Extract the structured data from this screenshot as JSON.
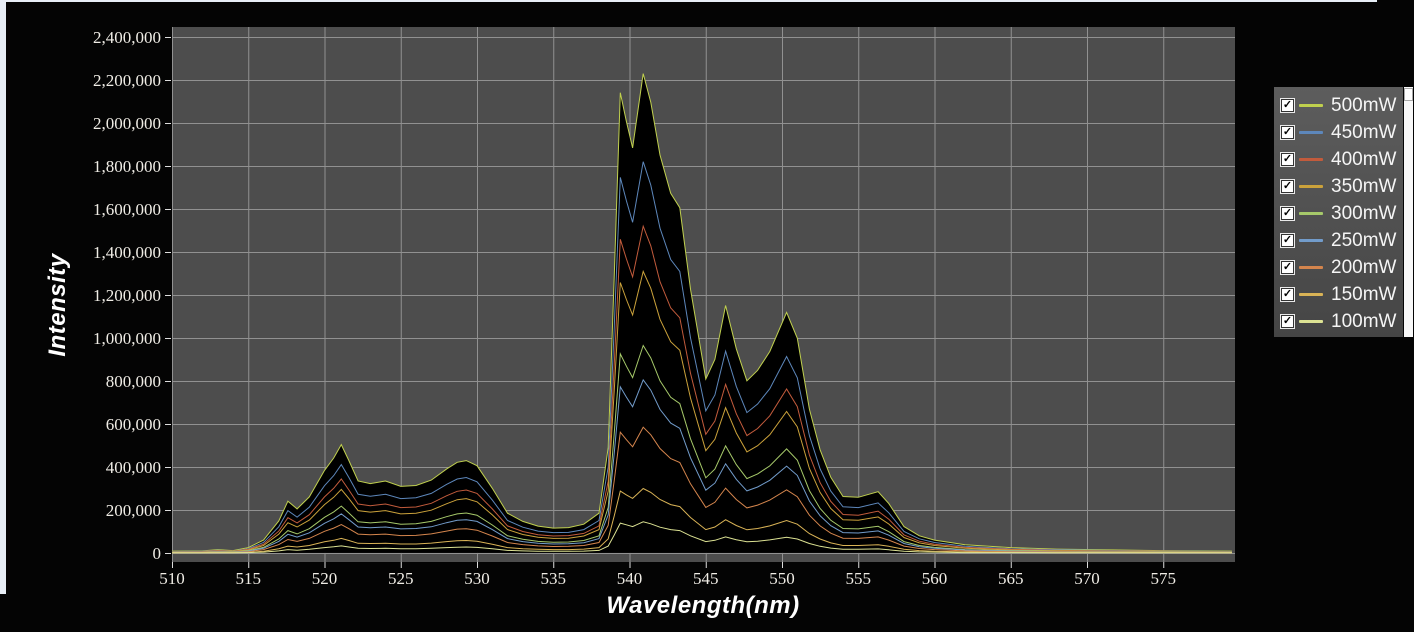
{
  "colors": {
    "background": "#040404",
    "plot_bg": "#4d4d4d",
    "grid": "#9d9d9d",
    "tick_mark": "#dddddd",
    "tick_text": "#f0ede6",
    "axis_title": "#ffffff",
    "frame_strip": "#e8eef6",
    "legend_bg_top": "#5d5d5d",
    "legend_bg_bottom": "#454545",
    "legend_text": "#f5f5f5",
    "scrollbar": "#f8f8f8"
  },
  "legend": {
    "check_glyph": "✓",
    "position": "right"
  },
  "chart_data": {
    "type": "line",
    "title": "",
    "xlabel": "Wavelength(nm)",
    "ylabel": "Intensity",
    "xlim": [
      510,
      579.7
    ],
    "ylim": [
      0,
      2400000
    ],
    "x_ticks": [
      510,
      515,
      520,
      525,
      530,
      535,
      540,
      545,
      550,
      555,
      560,
      565,
      570,
      575
    ],
    "y_tick_step": 200000,
    "grid": true,
    "legend_position": "right",
    "x": [
      510,
      512,
      513,
      514,
      515,
      516,
      517,
      517.6,
      518.2,
      519,
      520,
      520.6,
      521.1,
      521.6,
      522.2,
      523,
      524,
      525,
      526,
      527,
      528,
      528.7,
      529.3,
      530,
      531,
      532,
      533,
      534,
      535,
      536,
      537,
      538,
      538.6,
      539,
      539.4,
      539.8,
      540.2,
      540.9,
      541.4,
      542,
      542.7,
      543.3,
      544,
      545,
      545.6,
      546.3,
      547,
      547.7,
      548.4,
      549.2,
      550.3,
      551,
      551.8,
      552.5,
      553.2,
      554,
      555,
      556.3,
      557,
      558,
      559,
      560,
      562,
      565,
      568,
      571,
      575,
      579.5
    ],
    "series": [
      {
        "name": "500mW",
        "color": "#c0d04e",
        "checked": true,
        "values": [
          9000,
          10000,
          16000,
          11000,
          25000,
          60000,
          149000,
          241000,
          205000,
          261000,
          384000,
          442000,
          504000,
          430000,
          335000,
          323000,
          335000,
          310000,
          314000,
          339000,
          390000,
          422000,
          430000,
          406000,
          301000,
          185000,
          147000,
          125000,
          116000,
          118000,
          134000,
          185000,
          491000,
          1293000,
          2141000,
          2007000,
          1884000,
          2230000,
          2096000,
          1851000,
          1673000,
          1606000,
          1227000,
          809000,
          901000,
          1151000,
          950000,
          801000,
          850000,
          937000,
          1119000,
          999000,
          669000,
          480000,
          352000,
          263000,
          259000,
          285000,
          230000,
          123000,
          80000,
          60000,
          38000,
          25000,
          18000,
          15000,
          11000,
          9000
        ]
      },
      {
        "name": "450mW",
        "color": "#5d87bb",
        "checked": true,
        "values": [
          7000,
          8000,
          13000,
          9000,
          20000,
          49000,
          122000,
          197000,
          167000,
          213000,
          313000,
          360000,
          411000,
          351000,
          273000,
          264000,
          273000,
          253000,
          257000,
          277000,
          319000,
          344000,
          351000,
          331000,
          246000,
          151000,
          120000,
          102000,
          95000,
          96000,
          109000,
          151000,
          400000,
          1056000,
          1747000,
          1638000,
          1538000,
          1820000,
          1711000,
          1511000,
          1365000,
          1310000,
          1001000,
          661000,
          735000,
          939000,
          775000,
          653000,
          693000,
          764000,
          914000,
          815000,
          546000,
          391000,
          288000,
          215000,
          211000,
          233000,
          187000,
          100000,
          66000,
          49000,
          31000,
          20000,
          15000,
          12000,
          9000,
          7000
        ]
      },
      {
        "name": "400mW",
        "color": "#c25b3c",
        "checked": true,
        "values": [
          6000,
          7000,
          11000,
          8000,
          17000,
          41000,
          102000,
          164000,
          140000,
          178000,
          261000,
          301000,
          344000,
          293000,
          228000,
          220000,
          228000,
          211000,
          214000,
          231000,
          266000,
          287000,
          293000,
          277000,
          205000,
          126000,
          100000,
          85000,
          79000,
          81000,
          91000,
          126000,
          334000,
          882000,
          1459000,
          1368000,
          1284000,
          1520000,
          1429000,
          1262000,
          1140000,
          1094000,
          836000,
          552000,
          614000,
          784000,
          648000,
          546000,
          579000,
          638000,
          763000,
          681000,
          456000,
          327000,
          240000,
          179000,
          176000,
          195000,
          157000,
          84000,
          55000,
          41000,
          26000,
          17000,
          12000,
          10000,
          8000,
          6000
        ]
      },
      {
        "name": "350mW",
        "color": "#cba23b",
        "checked": true,
        "values": [
          5000,
          6000,
          9000,
          7000,
          14000,
          35000,
          88000,
          141000,
          121000,
          153000,
          225000,
          259000,
          296000,
          253000,
          197000,
          190000,
          197000,
          182000,
          185000,
          199000,
          229000,
          248000,
          253000,
          238000,
          177000,
          109000,
          86000,
          73000,
          68000,
          69000,
          79000,
          109000,
          288000,
          760000,
          1258000,
          1179000,
          1107000,
          1310000,
          1231000,
          1087000,
          983000,
          943000,
          721000,
          476000,
          529000,
          676000,
          558000,
          470000,
          499000,
          550000,
          658000,
          587000,
          393000,
          282000,
          207000,
          155000,
          152000,
          168000,
          135000,
          72000,
          47000,
          35000,
          22000,
          14000,
          10000,
          9000,
          7000,
          5000
        ]
      },
      {
        "name": "300mW",
        "color": "#a6c96a",
        "checked": true,
        "values": [
          4000,
          4000,
          7000,
          5000,
          11000,
          26000,
          65000,
          104000,
          89000,
          113000,
          166000,
          191000,
          218000,
          186000,
          145000,
          140000,
          145000,
          134000,
          136000,
          147000,
          169000,
          182000,
          186000,
          176000,
          130000,
          80000,
          64000,
          54000,
          50000,
          51000,
          58000,
          80000,
          212000,
          560000,
          926000,
          869000,
          816000,
          965000,
          907000,
          801000,
          724000,
          695000,
          531000,
          350000,
          390000,
          498000,
          411000,
          346000,
          368000,
          405000,
          484000,
          432000,
          290000,
          207000,
          152000,
          114000,
          112000,
          124000,
          99000,
          53000,
          35000,
          26000,
          16000,
          11000,
          8000,
          6000,
          5000,
          4000
        ]
      },
      {
        "name": "250mW",
        "color": "#729ccb",
        "checked": true,
        "values": [
          3000,
          4000,
          6000,
          4000,
          9000,
          22000,
          54000,
          87000,
          74000,
          94000,
          138000,
          159000,
          182000,
          155000,
          121000,
          117000,
          121000,
          112000,
          114000,
          122000,
          141000,
          152000,
          155000,
          147000,
          109000,
          67000,
          53000,
          45000,
          42000,
          43000,
          48000,
          67000,
          177000,
          467000,
          773000,
          725000,
          680000,
          805000,
          757000,
          668000,
          604000,
          580000,
          443000,
          292000,
          325000,
          415000,
          343000,
          289000,
          307000,
          338000,
          404000,
          361000,
          242000,
          173000,
          127000,
          95000,
          93000,
          103000,
          83000,
          44000,
          29000,
          22000,
          14000,
          9000,
          6000,
          5000,
          4000,
          3000
        ]
      },
      {
        "name": "200mW",
        "color": "#d4854d",
        "checked": true,
        "values": [
          2000,
          3000,
          4000,
          3000,
          6000,
          16000,
          39000,
          63000,
          54000,
          68000,
          101000,
          116000,
          132000,
          113000,
          88000,
          85000,
          88000,
          81000,
          82000,
          89000,
          102000,
          111000,
          113000,
          106000,
          79000,
          49000,
          39000,
          33000,
          30000,
          31000,
          35000,
          49000,
          129000,
          339000,
          562000,
          527000,
          494000,
          585000,
          550000,
          486000,
          439000,
          421000,
          322000,
          212000,
          236000,
          302000,
          249000,
          210000,
          223000,
          246000,
          294000,
          262000,
          176000,
          126000,
          92000,
          69000,
          68000,
          75000,
          60000,
          32000,
          21000,
          16000,
          10000,
          6000,
          5000,
          4000,
          3000,
          2000
        ]
      },
      {
        "name": "150mW",
        "color": "#d9b356",
        "checked": true,
        "values": [
          1000,
          1000,
          2000,
          2000,
          3000,
          8000,
          20000,
          32000,
          28000,
          35000,
          52000,
          59000,
          68000,
          58000,
          45000,
          44000,
          45000,
          42000,
          42000,
          46000,
          53000,
          57000,
          58000,
          55000,
          41000,
          25000,
          20000,
          17000,
          16000,
          16000,
          18000,
          25000,
          66000,
          174000,
          288000,
          270000,
          254000,
          300000,
          282000,
          249000,
          225000,
          216000,
          165000,
          109000,
          121000,
          155000,
          128000,
          108000,
          114000,
          126000,
          151000,
          134000,
          90000,
          65000,
          47000,
          35000,
          35000,
          38000,
          31000,
          17000,
          11000,
          8000,
          5000,
          3000,
          2000,
          2000,
          2000,
          1000
        ]
      },
      {
        "name": "100mW",
        "color": "#dce293",
        "checked": true,
        "values": [
          1000,
          1000,
          1000,
          1000,
          2000,
          4000,
          10000,
          16000,
          13000,
          17000,
          25000,
          29000,
          33000,
          28000,
          22000,
          21000,
          22000,
          20000,
          20000,
          22000,
          25000,
          27000,
          28000,
          26000,
          20000,
          12000,
          10000,
          8000,
          8000,
          8000,
          9000,
          12000,
          32000,
          84000,
          139000,
          131000,
          123000,
          145000,
          136000,
          120000,
          109000,
          104000,
          80000,
          53000,
          59000,
          75000,
          62000,
          52000,
          55000,
          61000,
          73000,
          65000,
          44000,
          31000,
          23000,
          17000,
          17000,
          19000,
          15000,
          8000,
          5000,
          4000,
          2000,
          2000,
          1000,
          1000,
          1000,
          1000
        ]
      }
    ]
  }
}
